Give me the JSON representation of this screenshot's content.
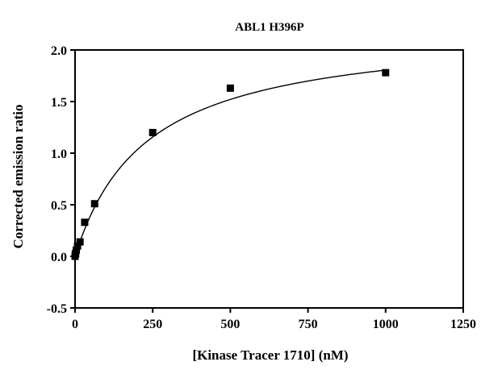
{
  "chart_data": {
    "type": "scatter",
    "title": "ABL1 H396P",
    "xlabel": "[Kinase Tracer 1710] (nM)",
    "ylabel": "Corrected emission ratio",
    "xlim": [
      0,
      1250
    ],
    "ylim": [
      -0.5,
      2.0
    ],
    "x_ticks": [
      0,
      250,
      500,
      750,
      1000,
      1250
    ],
    "y_ticks": [
      -0.5,
      0.0,
      0.5,
      1.0,
      1.5,
      2.0
    ],
    "x_tick_labels": [
      "0",
      "250",
      "500",
      "750",
      "1000",
      "1250"
    ],
    "y_tick_labels": [
      "-0.5",
      "0.0",
      "0.5",
      "1.0",
      "1.5",
      "2.0"
    ],
    "grid": false,
    "legend": "none",
    "series": [
      {
        "marker": "square",
        "color": "#000000",
        "x": [
          0,
          1,
          2,
          4,
          8,
          16,
          31,
          63,
          250,
          500,
          1000
        ],
        "y": [
          0.0,
          0.02,
          0.03,
          0.06,
          0.1,
          0.14,
          0.33,
          0.51,
          1.2,
          1.63,
          1.78
        ]
      }
    ],
    "fit": {
      "model": "one-site binding",
      "Bmax": 2.22,
      "Kd": 230,
      "color": "#000000"
    }
  }
}
